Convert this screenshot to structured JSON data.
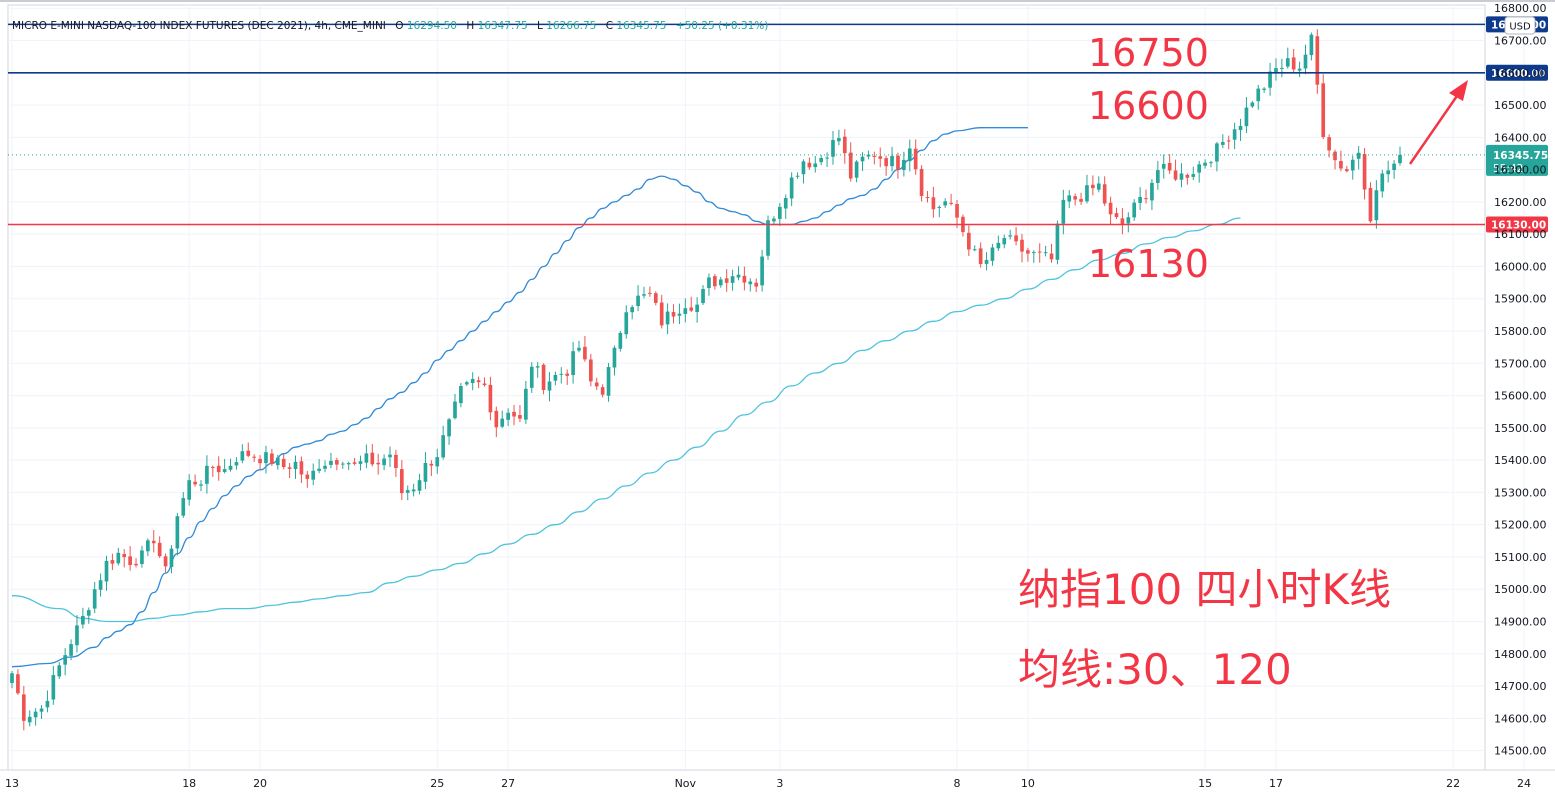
{
  "header": {
    "symbol": "MICRO E-MINI NASDAQ-100 INDEX FUTURES (DEC 2021), 4h, CME_MINI",
    "o_label": "O",
    "o_value": "16294.50",
    "h_label": "H",
    "h_value": "16347.75",
    "l_label": "L",
    "l_value": "16266.75",
    "c_label": "C",
    "c_value": "16345.75",
    "change": "+50.25 (+0.31%)"
  },
  "currency_label": "USD",
  "last_price": {
    "value": "16345.75",
    "countdown": "55:42",
    "price": 16345.75,
    "color": "#26a69a"
  },
  "levels": [
    {
      "price": 16750,
      "label": "16750.00",
      "color": "#0d3a8c"
    },
    {
      "price": 16600,
      "label": "16600.00",
      "color": "#0d3a8c"
    },
    {
      "price": 16130,
      "label": "16130.00",
      "color": "#f23645"
    }
  ],
  "annotations": {
    "level_16750": "16750",
    "level_16600": "16600",
    "level_16130": "16130",
    "title_line1": "纳指100 四小时K线",
    "title_line2": "均线:30、120",
    "color": "#f23645"
  },
  "chart_data": {
    "type": "candlestick",
    "title": "",
    "xlabel": "",
    "ylabel": "",
    "ylim": [
      14440,
      16810
    ],
    "y_ticks": [
      14500,
      14600,
      14700,
      14800,
      14900,
      15000,
      15100,
      15200,
      15300,
      15400,
      15500,
      15600,
      15700,
      15800,
      15900,
      16000,
      16100,
      16200,
      16300,
      16400,
      16500,
      16600,
      16700,
      16800
    ],
    "y_tick_labels": [
      "14500.00",
      "14600.00",
      "14700.00",
      "14800.00",
      "14900.00",
      "15000.00",
      "15100.00",
      "15200.00",
      "15300.00",
      "15400.00",
      "15500.00",
      "15600.00",
      "15700.00",
      "15800.00",
      "15900.00",
      "16000.00",
      "16100.00",
      "16200.00",
      "16300.00",
      "16400.00",
      "16500.00",
      "16600.00",
      "16700.00",
      "16800.00"
    ],
    "x_ticks": [
      {
        "label": "13",
        "index": 0
      },
      {
        "label": "18",
        "index": 30
      },
      {
        "label": "20",
        "index": 42
      },
      {
        "label": "25",
        "index": 72
      },
      {
        "label": "27",
        "index": 84
      },
      {
        "label": "Nov",
        "index": 114
      },
      {
        "label": "3",
        "index": 130
      },
      {
        "label": "8",
        "index": 160
      },
      {
        "label": "10",
        "index": 172
      },
      {
        "label": "15",
        "index": 202
      },
      {
        "label": "17",
        "index": 214
      },
      {
        "label": "22",
        "index": 244
      },
      {
        "label": "24",
        "index": 256
      }
    ],
    "up_color": "#26a69a",
    "down_color": "#ef5350",
    "ma30_color": "#2f8ad8",
    "ma120_color": "#4fc3dc",
    "anchors": [
      [
        0,
        14740
      ],
      [
        2,
        14610
      ],
      [
        5,
        14630
      ],
      [
        8,
        14760
      ],
      [
        10,
        14840
      ],
      [
        12,
        14910
      ],
      [
        14,
        15000
      ],
      [
        16,
        15080
      ],
      [
        18,
        15110
      ],
      [
        20,
        15090
      ],
      [
        22,
        15100
      ],
      [
        24,
        15160
      ],
      [
        26,
        15050
      ],
      [
        28,
        15230
      ],
      [
        30,
        15330
      ],
      [
        32,
        15340
      ],
      [
        34,
        15380
      ],
      [
        36,
        15370
      ],
      [
        38,
        15410
      ],
      [
        40,
        15420
      ],
      [
        42,
        15410
      ],
      [
        44,
        15400
      ],
      [
        46,
        15380
      ],
      [
        48,
        15390
      ],
      [
        50,
        15330
      ],
      [
        52,
        15390
      ],
      [
        54,
        15400
      ],
      [
        56,
        15410
      ],
      [
        58,
        15380
      ],
      [
        60,
        15400
      ],
      [
        62,
        15390
      ],
      [
        64,
        15420
      ],
      [
        66,
        15300
      ],
      [
        68,
        15320
      ],
      [
        70,
        15380
      ],
      [
        72,
        15420
      ],
      [
        74,
        15510
      ],
      [
        76,
        15610
      ],
      [
        78,
        15640
      ],
      [
        80,
        15630
      ],
      [
        82,
        15510
      ],
      [
        84,
        15560
      ],
      [
        86,
        15520
      ],
      [
        88,
        15700
      ],
      [
        90,
        15640
      ],
      [
        92,
        15660
      ],
      [
        94,
        15680
      ],
      [
        96,
        15750
      ],
      [
        98,
        15640
      ],
      [
        100,
        15620
      ],
      [
        102,
        15730
      ],
      [
        104,
        15880
      ],
      [
        106,
        15900
      ],
      [
        108,
        15910
      ],
      [
        110,
        15830
      ],
      [
        112,
        15860
      ],
      [
        114,
        15890
      ],
      [
        116,
        15880
      ],
      [
        118,
        15950
      ],
      [
        120,
        15960
      ],
      [
        122,
        15980
      ],
      [
        124,
        15970
      ],
      [
        126,
        15950
      ],
      [
        128,
        16130
      ],
      [
        130,
        16200
      ],
      [
        132,
        16270
      ],
      [
        134,
        16330
      ],
      [
        136,
        16320
      ],
      [
        138,
        16360
      ],
      [
        140,
        16400
      ],
      [
        142,
        16280
      ],
      [
        144,
        16330
      ],
      [
        146,
        16350
      ],
      [
        148,
        16330
      ],
      [
        150,
        16320
      ],
      [
        152,
        16380
      ],
      [
        154,
        16240
      ],
      [
        156,
        16180
      ],
      [
        158,
        16200
      ],
      [
        160,
        16150
      ],
      [
        162,
        16070
      ],
      [
        164,
        16000
      ],
      [
        166,
        16040
      ],
      [
        168,
        16090
      ],
      [
        170,
        16060
      ],
      [
        172,
        16040
      ],
      [
        174,
        16030
      ],
      [
        176,
        16020
      ],
      [
        178,
        16200
      ],
      [
        180,
        16210
      ],
      [
        182,
        16230
      ],
      [
        184,
        16250
      ],
      [
        186,
        16150
      ],
      [
        188,
        16130
      ],
      [
        190,
        16180
      ],
      [
        192,
        16230
      ],
      [
        194,
        16300
      ],
      [
        196,
        16290
      ],
      [
        198,
        16280
      ],
      [
        200,
        16300
      ],
      [
        202,
        16330
      ],
      [
        204,
        16360
      ],
      [
        206,
        16410
      ],
      [
        208,
        16450
      ],
      [
        210,
        16520
      ],
      [
        212,
        16560
      ],
      [
        214,
        16610
      ],
      [
        216,
        16630
      ],
      [
        218,
        16620
      ],
      [
        220,
        16700
      ],
      [
        222,
        16420
      ],
      [
        224,
        16330
      ],
      [
        226,
        16300
      ],
      [
        228,
        16360
      ],
      [
        230,
        16160
      ],
      [
        232,
        16290
      ],
      [
        234,
        16300
      ],
      [
        235,
        16345.75
      ]
    ],
    "ma30": [
      [
        0,
        14760
      ],
      [
        6,
        14770
      ],
      [
        10,
        14790
      ],
      [
        14,
        14820
      ],
      [
        16,
        14850
      ],
      [
        18,
        14870
      ],
      [
        20,
        14890
      ],
      [
        22,
        14930
      ],
      [
        24,
        14990
      ],
      [
        26,
        15050
      ],
      [
        28,
        15110
      ],
      [
        30,
        15160
      ],
      [
        32,
        15210
      ],
      [
        34,
        15250
      ],
      [
        36,
        15290
      ],
      [
        38,
        15320
      ],
      [
        40,
        15350
      ],
      [
        42,
        15370
      ],
      [
        44,
        15390
      ],
      [
        46,
        15420
      ],
      [
        48,
        15440
      ],
      [
        50,
        15450
      ],
      [
        52,
        15460
      ],
      [
        54,
        15480
      ],
      [
        56,
        15490
      ],
      [
        58,
        15510
      ],
      [
        60,
        15530
      ],
      [
        62,
        15560
      ],
      [
        64,
        15590
      ],
      [
        66,
        15610
      ],
      [
        68,
        15640
      ],
      [
        70,
        15670
      ],
      [
        72,
        15710
      ],
      [
        74,
        15740
      ],
      [
        76,
        15770
      ],
      [
        78,
        15800
      ],
      [
        80,
        15830
      ],
      [
        82,
        15860
      ],
      [
        84,
        15890
      ],
      [
        86,
        15920
      ],
      [
        88,
        15960
      ],
      [
        90,
        16000
      ],
      [
        92,
        16040
      ],
      [
        94,
        16080
      ],
      [
        96,
        16120
      ],
      [
        98,
        16150
      ],
      [
        100,
        16180
      ],
      [
        102,
        16200
      ],
      [
        104,
        16220
      ],
      [
        106,
        16240
      ],
      [
        108,
        16270
      ],
      [
        110,
        16280
      ],
      [
        112,
        16270
      ],
      [
        114,
        16250
      ],
      [
        116,
        16230
      ],
      [
        118,
        16200
      ],
      [
        120,
        16180
      ],
      [
        122,
        16170
      ],
      [
        124,
        16160
      ],
      [
        126,
        16140
      ],
      [
        128,
        16130
      ],
      [
        130,
        16130
      ],
      [
        132,
        16130
      ],
      [
        134,
        16140
      ],
      [
        136,
        16150
      ],
      [
        138,
        16170
      ],
      [
        140,
        16190
      ],
      [
        142,
        16210
      ],
      [
        144,
        16220
      ],
      [
        146,
        16240
      ],
      [
        148,
        16270
      ],
      [
        150,
        16300
      ],
      [
        152,
        16330
      ],
      [
        154,
        16360
      ],
      [
        156,
        16390
      ],
      [
        158,
        16410
      ],
      [
        160,
        16420
      ],
      [
        164,
        16430
      ],
      [
        168,
        16430
      ],
      [
        172,
        16430
      ]
    ],
    "ma120": [
      [
        0,
        14980
      ],
      [
        8,
        14940
      ],
      [
        12,
        14910
      ],
      [
        16,
        14900
      ],
      [
        20,
        14900
      ],
      [
        24,
        14910
      ],
      [
        28,
        14920
      ],
      [
        32,
        14930
      ],
      [
        36,
        14940
      ],
      [
        40,
        14940
      ],
      [
        44,
        14950
      ],
      [
        48,
        14960
      ],
      [
        52,
        14970
      ],
      [
        56,
        14980
      ],
      [
        60,
        14990
      ],
      [
        64,
        15020
      ],
      [
        68,
        15040
      ],
      [
        72,
        15060
      ],
      [
        76,
        15080
      ],
      [
        80,
        15110
      ],
      [
        84,
        15140
      ],
      [
        88,
        15170
      ],
      [
        92,
        15200
      ],
      [
        96,
        15240
      ],
      [
        100,
        15280
      ],
      [
        104,
        15320
      ],
      [
        108,
        15360
      ],
      [
        112,
        15400
      ],
      [
        116,
        15440
      ],
      [
        120,
        15490
      ],
      [
        124,
        15540
      ],
      [
        128,
        15580
      ],
      [
        132,
        15630
      ],
      [
        136,
        15670
      ],
      [
        140,
        15700
      ],
      [
        144,
        15740
      ],
      [
        148,
        15770
      ],
      [
        152,
        15800
      ],
      [
        156,
        15830
      ],
      [
        160,
        15860
      ],
      [
        164,
        15880
      ],
      [
        168,
        15900
      ],
      [
        172,
        15930
      ],
      [
        176,
        15960
      ],
      [
        180,
        15990
      ],
      [
        184,
        16020
      ],
      [
        188,
        16040
      ],
      [
        192,
        16070
      ],
      [
        196,
        16090
      ],
      [
        200,
        16110
      ],
      [
        204,
        16130
      ],
      [
        208,
        16150
      ]
    ]
  }
}
